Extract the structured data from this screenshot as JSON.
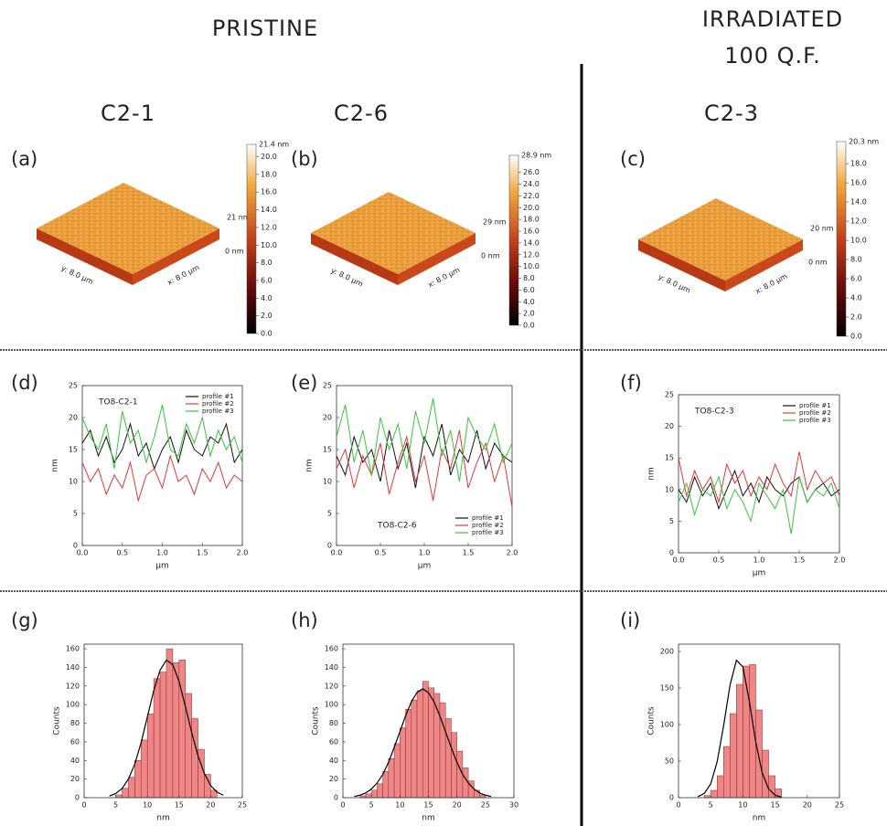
{
  "headers": {
    "pristine": "PRISTINE",
    "irradiated": "IRRADIATED",
    "fluence": "100 Q.F."
  },
  "columns": [
    "C2-1",
    "C2-6",
    "C2-3"
  ],
  "chart_data": [
    {
      "type": "surface",
      "label": "(a)",
      "height_max_label": "21 nm",
      "height_min_label": "0 nm",
      "y_axis_label": "y: 8.0 µm",
      "x_axis_label": "x: 8.0 µm",
      "colorbar_title": "21.4 nm",
      "clim": [
        0,
        21.4
      ],
      "cticks": [
        {
          "value": 0,
          "label": "0.0"
        },
        {
          "value": 2,
          "label": "2.0"
        },
        {
          "value": 4,
          "label": "4.0"
        },
        {
          "value": 6,
          "label": "6.0"
        },
        {
          "value": 8,
          "label": "8.0"
        },
        {
          "value": 10,
          "label": "10.0"
        },
        {
          "value": 12,
          "label": "12.0"
        },
        {
          "value": 14,
          "label": "14.0"
        },
        {
          "value": 16,
          "label": "16.0"
        },
        {
          "value": 18,
          "label": "18.0"
        },
        {
          "value": 20,
          "label": "20.0"
        }
      ]
    },
    {
      "type": "surface",
      "label": "(b)",
      "height_max_label": "29 nm",
      "height_min_label": "0 nm",
      "y_axis_label": "y: 8.0 µm",
      "x_axis_label": "x: 8.0 µm",
      "colorbar_title": "28.9 nm",
      "clim": [
        0,
        28.9
      ],
      "cticks": [
        {
          "value": 0,
          "label": "0.0"
        },
        {
          "value": 2,
          "label": "2.0"
        },
        {
          "value": 4,
          "label": "4.0"
        },
        {
          "value": 6,
          "label": "6.0"
        },
        {
          "value": 8,
          "label": "8.0"
        },
        {
          "value": 10,
          "label": "10.0"
        },
        {
          "value": 12,
          "label": "12.0"
        },
        {
          "value": 14,
          "label": "14.0"
        },
        {
          "value": 16,
          "label": "16.0"
        },
        {
          "value": 18,
          "label": "18.0"
        },
        {
          "value": 20,
          "label": "20.0"
        },
        {
          "value": 22,
          "label": "22.0"
        },
        {
          "value": 24,
          "label": "24.0"
        },
        {
          "value": 26,
          "label": "26.0"
        }
      ]
    },
    {
      "type": "surface",
      "label": "(c)",
      "height_max_label": "20 nm",
      "height_min_label": "0 nm",
      "y_axis_label": "y: 8.0 µm",
      "x_axis_label": "x: 8.0 µm",
      "colorbar_title": "20.3 nm",
      "clim": [
        0,
        20.3
      ],
      "cticks": [
        {
          "value": 0,
          "label": "0.0"
        },
        {
          "value": 2,
          "label": "2.0"
        },
        {
          "value": 4,
          "label": "4.0"
        },
        {
          "value": 6,
          "label": "6.0"
        },
        {
          "value": 8,
          "label": "8.0"
        },
        {
          "value": 10,
          "label": "10.0"
        },
        {
          "value": 12,
          "label": "12.0"
        },
        {
          "value": 14,
          "label": "14.0"
        },
        {
          "value": 16,
          "label": "16.0"
        },
        {
          "value": 18,
          "label": "18.0"
        }
      ]
    },
    {
      "type": "line",
      "label": "(d)",
      "annotation": "TO8-C2-1",
      "xlabel": "µm",
      "ylabel": "nm",
      "legend": "upper right",
      "x": [
        0,
        0.1,
        0.2,
        0.3,
        0.4,
        0.5,
        0.6,
        0.7,
        0.8,
        0.9,
        1.0,
        1.1,
        1.2,
        1.3,
        1.4,
        1.5,
        1.6,
        1.7,
        1.8,
        1.9,
        2.0
      ],
      "series": [
        {
          "name": "profile #1",
          "color": "#111111",
          "values": [
            16,
            18,
            14,
            17,
            13,
            15,
            19,
            14,
            16,
            12,
            15,
            17,
            13,
            18,
            15,
            14,
            17,
            16,
            19,
            13,
            15
          ]
        },
        {
          "name": "profile #2",
          "color": "#e0383a",
          "values": [
            13,
            10,
            12,
            8,
            11,
            9,
            13,
            7,
            11,
            12,
            9,
            14,
            10,
            11,
            8,
            12,
            10,
            13,
            9,
            11,
            10
          ]
        },
        {
          "name": "profile #3",
          "color": "#3cc43c",
          "values": [
            20,
            17,
            15,
            19,
            12,
            21,
            16,
            18,
            13,
            17,
            22,
            15,
            14,
            19,
            16,
            20,
            14,
            18,
            15,
            17,
            13
          ]
        }
      ],
      "xlim": [
        0,
        2
      ],
      "ylim": [
        0,
        25
      ],
      "xticks": [
        {
          "value": 0,
          "label": "0.0"
        },
        {
          "value": 0.5,
          "label": "0.5"
        },
        {
          "value": 1,
          "label": "1.0"
        },
        {
          "value": 1.5,
          "label": "1.5"
        },
        {
          "value": 2,
          "label": "2.0"
        }
      ],
      "yticks": [
        0,
        5,
        10,
        15,
        20,
        25
      ]
    },
    {
      "type": "line",
      "label": "(e)",
      "annotation": "TO8-C2-6",
      "xlabel": "µm",
      "ylabel": "nm",
      "legend": "lower right",
      "x": [
        0,
        0.1,
        0.2,
        0.3,
        0.4,
        0.5,
        0.6,
        0.7,
        0.8,
        0.9,
        1.0,
        1.1,
        1.2,
        1.3,
        1.4,
        1.5,
        1.6,
        1.7,
        1.8,
        1.9,
        2.0
      ],
      "series": [
        {
          "name": "profile #1",
          "color": "#111111",
          "values": [
            14,
            11,
            17,
            13,
            15,
            10,
            18,
            12,
            16,
            9,
            17,
            14,
            19,
            11,
            15,
            13,
            18,
            12,
            16,
            14,
            13
          ]
        },
        {
          "name": "profile #2",
          "color": "#e0383a",
          "values": [
            12,
            15,
            9,
            14,
            11,
            16,
            8,
            13,
            17,
            10,
            14,
            7,
            15,
            12,
            18,
            9,
            13,
            16,
            10,
            14,
            6
          ]
        },
        {
          "name": "profile #3",
          "color": "#3cc43c",
          "values": [
            17,
            22,
            13,
            18,
            11,
            20,
            15,
            19,
            12,
            21,
            16,
            23,
            14,
            18,
            10,
            20,
            17,
            15,
            19,
            13,
            16
          ]
        }
      ],
      "xlim": [
        0,
        2
      ],
      "ylim": [
        0,
        25
      ],
      "xticks": [
        {
          "value": 0,
          "label": "0.0"
        },
        {
          "value": 0.5,
          "label": "0.5"
        },
        {
          "value": 1,
          "label": "1.0"
        },
        {
          "value": 1.5,
          "label": "1.5"
        },
        {
          "value": 2,
          "label": "2.0"
        }
      ],
      "yticks": [
        0,
        5,
        10,
        15,
        20,
        25
      ]
    },
    {
      "type": "line",
      "label": "(f)",
      "annotation": "TO8-C2-3",
      "xlabel": "µm",
      "ylabel": "nm",
      "legend": "upper right",
      "x": [
        0,
        0.1,
        0.2,
        0.3,
        0.4,
        0.5,
        0.6,
        0.7,
        0.8,
        0.9,
        1.0,
        1.1,
        1.2,
        1.3,
        1.4,
        1.5,
        1.6,
        1.7,
        1.8,
        1.9,
        2.0
      ],
      "series": [
        {
          "name": "profile #1",
          "color": "#111111",
          "values": [
            10,
            8,
            12,
            9,
            11,
            7,
            10,
            13,
            9,
            11,
            8,
            12,
            10,
            9,
            11,
            12,
            8,
            10,
            11,
            9,
            10
          ]
        },
        {
          "name": "profile #2",
          "color": "#e0383a",
          "values": [
            15,
            9,
            13,
            10,
            12,
            8,
            14,
            11,
            13,
            9,
            12,
            10,
            14,
            11,
            9,
            16,
            10,
            13,
            11,
            12,
            9
          ]
        },
        {
          "name": "profile #3",
          "color": "#3cc43c",
          "values": [
            8,
            11,
            6,
            10,
            9,
            12,
            7,
            10,
            8,
            5,
            11,
            9,
            7,
            10,
            3,
            12,
            8,
            10,
            9,
            11,
            7
          ]
        }
      ],
      "xlim": [
        0,
        2
      ],
      "ylim": [
        0,
        25
      ],
      "xticks": [
        {
          "value": 0,
          "label": "0.0"
        },
        {
          "value": 0.5,
          "label": "0.5"
        },
        {
          "value": 1,
          "label": "1.0"
        },
        {
          "value": 1.5,
          "label": "1.5"
        },
        {
          "value": 2,
          "label": "2.0"
        }
      ],
      "yticks": [
        0,
        5,
        10,
        15,
        20,
        25
      ]
    },
    {
      "type": "histogram",
      "label": "(g)",
      "xlabel": "nm",
      "ylabel": "Counts",
      "color": "#f08585",
      "bins": [
        5,
        6,
        7,
        8,
        9,
        10,
        11,
        12,
        13,
        14,
        15,
        16,
        17,
        18,
        19,
        20,
        21
      ],
      "counts": [
        3,
        10,
        22,
        40,
        62,
        90,
        128,
        135,
        160,
        145,
        148,
        112,
        85,
        52,
        25,
        8
      ],
      "fit": {
        "color": "#000000",
        "x": [
          4,
          5,
          6,
          7,
          8,
          9,
          10,
          11,
          12,
          13,
          14,
          15,
          16,
          17,
          18,
          19,
          20,
          21,
          22
        ],
        "values": [
          1.8,
          4.5,
          9.9,
          20,
          36,
          59,
          87,
          115,
          137,
          148,
          143,
          125,
          98,
          70,
          45,
          26,
          13,
          6,
          2.6
        ]
      },
      "xlim": [
        0,
        25
      ],
      "ylim": [
        0,
        165
      ],
      "xticks": [
        0,
        5,
        10,
        15,
        20,
        25
      ],
      "yticks": [
        0,
        20,
        40,
        60,
        80,
        100,
        120,
        140,
        160
      ]
    },
    {
      "type": "histogram",
      "label": "(h)",
      "xlabel": "nm",
      "ylabel": "Counts",
      "color": "#f08585",
      "bins": [
        3,
        4,
        5,
        6,
        7,
        8,
        9,
        10,
        11,
        12,
        13,
        14,
        15,
        16,
        17,
        18,
        19,
        20,
        21,
        22,
        23,
        24,
        25
      ],
      "counts": [
        2,
        4,
        8,
        15,
        28,
        42,
        58,
        75,
        95,
        105,
        115,
        125,
        118,
        112,
        102,
        85,
        70,
        50,
        32,
        18,
        8,
        3
      ],
      "fit": {
        "color": "#000000",
        "x": [
          2,
          3,
          4,
          5,
          6,
          7,
          8,
          9,
          10,
          11,
          12,
          13,
          14,
          15,
          16,
          17,
          18,
          19,
          20,
          21,
          22,
          23,
          24,
          25,
          26
        ],
        "values": [
          1.3,
          2.7,
          5.1,
          9.3,
          15.8,
          25,
          38,
          54,
          71,
          88,
          103,
          113,
          117,
          113,
          103,
          88,
          71,
          54,
          38,
          25,
          15.8,
          9.3,
          5.1,
          2.7,
          1.3
        ]
      },
      "xlim": [
        0,
        30
      ],
      "ylim": [
        0,
        165
      ],
      "xticks": [
        0,
        5,
        10,
        15,
        20,
        25,
        30
      ],
      "yticks": [
        0,
        20,
        40,
        60,
        80,
        100,
        120,
        140,
        160
      ]
    },
    {
      "type": "histogram",
      "label": "(i)",
      "xlabel": "nm",
      "ylabel": "Counts",
      "color": "#f08585",
      "bins": [
        4,
        5,
        6,
        7,
        8,
        9,
        10,
        11,
        12,
        13,
        14,
        15,
        16
      ],
      "counts": [
        3,
        10,
        30,
        70,
        115,
        155,
        180,
        182,
        120,
        65,
        30,
        12
      ],
      "fit": {
        "color": "#000000",
        "x": [
          3,
          4,
          5,
          6,
          7,
          8,
          9,
          10,
          11,
          12,
          13,
          14,
          15,
          16
        ],
        "values": [
          1.3,
          5.7,
          18.8,
          49,
          98,
          154,
          188,
          179,
          132,
          76,
          34,
          12,
          3.3,
          0.7
        ]
      },
      "xlim": [
        0,
        25
      ],
      "ylim": [
        0,
        210
      ],
      "xticks": [
        0,
        5,
        10,
        15,
        20,
        25
      ],
      "yticks": [
        0,
        50,
        100,
        150,
        200
      ]
    }
  ]
}
